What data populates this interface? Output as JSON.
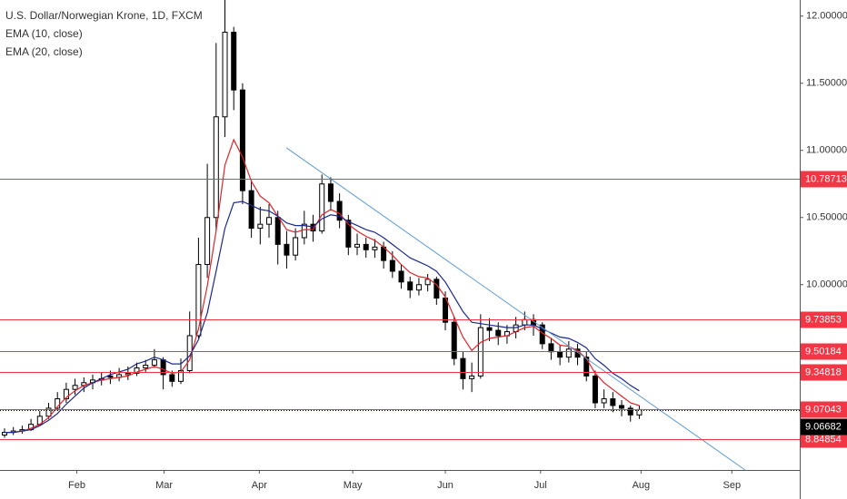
{
  "chart_data": {
    "type": "candlestick",
    "title": "U.S. Dollar/Norwegian Krone, 1D, FXCM",
    "up_color": "#ffffff",
    "down_color": "#000000",
    "candles": {
      "open": [
        8.88,
        8.9,
        8.91,
        8.92,
        8.96,
        9.02,
        9.08,
        9.15,
        9.22,
        9.25,
        9.27,
        9.29,
        9.32,
        9.31,
        9.33,
        9.34,
        9.38,
        9.4,
        9.44,
        9.33,
        9.28,
        9.36,
        9.62,
        10.15,
        10.5,
        11.25,
        11.88,
        11.45,
        10.7,
        10.42,
        10.45,
        10.5,
        10.3,
        10.22,
        10.35,
        10.45,
        10.4,
        10.75,
        10.62,
        10.48,
        10.28,
        10.3,
        10.26,
        10.28,
        10.18,
        10.1,
        10.02,
        9.96,
        10.0,
        10.04,
        9.9,
        9.72,
        9.45,
        9.3,
        9.32,
        9.68,
        9.66,
        9.62,
        9.65,
        9.7,
        9.74,
        9.7,
        9.56,
        9.5,
        9.46,
        9.52,
        9.46,
        9.32,
        9.12,
        9.15,
        9.1,
        9.08,
        9.03
      ],
      "high": [
        8.93,
        8.94,
        8.95,
        9.0,
        9.06,
        9.12,
        9.2,
        9.27,
        9.3,
        9.31,
        9.33,
        9.35,
        9.36,
        9.38,
        9.39,
        9.42,
        9.44,
        9.52,
        9.46,
        9.36,
        9.45,
        9.8,
        10.35,
        10.9,
        11.8,
        12.12,
        11.92,
        11.5,
        10.78,
        10.58,
        10.6,
        10.55,
        10.4,
        10.42,
        10.55,
        10.52,
        10.82,
        10.8,
        10.68,
        10.52,
        10.38,
        10.35,
        10.34,
        10.32,
        10.25,
        10.15,
        10.06,
        10.05,
        10.08,
        10.06,
        9.95,
        9.76,
        9.5,
        9.42,
        9.78,
        9.75,
        9.72,
        9.7,
        9.76,
        9.8,
        9.78,
        9.72,
        9.6,
        9.55,
        9.58,
        9.56,
        9.5,
        9.36,
        9.22,
        9.2,
        9.14,
        9.1,
        9.1
      ],
      "low": [
        8.86,
        8.88,
        8.89,
        8.91,
        8.95,
        9.0,
        9.06,
        9.12,
        9.18,
        9.2,
        9.22,
        9.25,
        9.26,
        9.28,
        9.29,
        9.32,
        9.35,
        9.38,
        9.22,
        9.24,
        9.26,
        9.34,
        9.6,
        10.05,
        10.4,
        11.1,
        11.3,
        10.6,
        10.35,
        10.3,
        10.35,
        10.15,
        10.12,
        10.18,
        10.3,
        10.32,
        10.38,
        10.55,
        10.42,
        10.22,
        10.22,
        10.2,
        10.2,
        10.12,
        10.05,
        9.97,
        9.9,
        9.92,
        9.95,
        9.85,
        9.66,
        9.4,
        9.22,
        9.2,
        9.3,
        9.58,
        9.55,
        9.56,
        9.6,
        9.66,
        9.62,
        9.52,
        9.44,
        9.4,
        9.42,
        9.4,
        9.28,
        9.08,
        9.08,
        9.05,
        9.02,
        8.98,
        9.0
      ],
      "close": [
        8.9,
        8.91,
        8.92,
        8.96,
        9.02,
        9.08,
        9.15,
        9.22,
        9.25,
        9.27,
        9.29,
        9.3,
        9.31,
        9.33,
        9.34,
        9.38,
        9.4,
        9.44,
        9.33,
        9.28,
        9.36,
        9.62,
        10.15,
        10.5,
        11.25,
        11.88,
        11.45,
        10.7,
        10.42,
        10.45,
        10.5,
        10.3,
        10.22,
        10.35,
        10.45,
        10.4,
        10.75,
        10.62,
        10.48,
        10.28,
        10.3,
        10.26,
        10.28,
        10.18,
        10.1,
        10.02,
        9.96,
        10.0,
        10.04,
        9.9,
        9.72,
        9.45,
        9.3,
        9.32,
        9.68,
        9.66,
        9.62,
        9.65,
        9.7,
        9.74,
        9.7,
        9.56,
        9.5,
        9.46,
        9.52,
        9.46,
        9.32,
        9.12,
        9.15,
        9.1,
        9.08,
        9.03,
        9.07
      ]
    },
    "series": [
      {
        "name": "EMA (10, close)",
        "color": "#e0242a",
        "values": [
          8.9,
          8.9,
          8.91,
          8.93,
          8.96,
          9.01,
          9.09,
          9.16,
          9.21,
          9.25,
          9.27,
          9.29,
          9.3,
          9.31,
          9.32,
          9.35,
          9.37,
          9.39,
          9.37,
          9.34,
          9.35,
          9.44,
          9.67,
          9.99,
          10.4,
          10.89,
          11.08,
          10.95,
          10.77,
          10.66,
          10.61,
          10.51,
          10.41,
          10.39,
          10.41,
          10.41,
          10.52,
          10.56,
          10.53,
          10.45,
          10.4,
          10.36,
          10.33,
          10.28,
          10.22,
          10.15,
          10.09,
          10.06,
          10.05,
          10.0,
          9.91,
          9.76,
          9.61,
          9.51,
          9.57,
          9.6,
          9.61,
          9.62,
          9.65,
          9.68,
          9.69,
          9.64,
          9.6,
          9.55,
          9.54,
          9.51,
          9.45,
          9.34,
          9.27,
          9.22,
          9.17,
          9.12,
          9.1
        ]
      },
      {
        "name": "EMA (20, close)",
        "color": "#1c2a8c",
        "values": [
          8.9,
          8.9,
          8.91,
          8.92,
          8.95,
          8.99,
          9.04,
          9.11,
          9.17,
          9.23,
          9.27,
          9.3,
          9.33,
          9.35,
          9.37,
          9.41,
          9.43,
          9.46,
          9.44,
          9.41,
          9.41,
          9.47,
          9.59,
          9.79,
          10.1,
          10.42,
          10.61,
          10.62,
          10.59,
          10.56,
          10.55,
          10.51,
          10.46,
          10.44,
          10.44,
          10.43,
          10.49,
          10.52,
          10.51,
          10.47,
          10.44,
          10.41,
          10.39,
          10.35,
          10.3,
          10.25,
          10.2,
          10.17,
          10.14,
          10.1,
          10.02,
          9.91,
          9.8,
          9.72,
          9.71,
          9.7,
          9.69,
          9.68,
          9.68,
          9.7,
          9.7,
          9.67,
          9.64,
          9.61,
          9.6,
          9.57,
          9.53,
          9.45,
          9.4,
          9.34,
          9.3,
          9.25,
          9.21
        ]
      }
    ],
    "xlim": [
      -0.515,
      90.2
    ],
    "xticks": [
      {
        "value": 8.2,
        "label": "Feb"
      },
      {
        "value": 18.1,
        "label": "Mar"
      },
      {
        "value": 28.9,
        "label": "Apr"
      },
      {
        "value": 39.5,
        "label": "May"
      },
      {
        "value": 50.0,
        "label": "Jun"
      },
      {
        "value": 60.8,
        "label": "Jul"
      },
      {
        "value": 72.2,
        "label": "Aug"
      },
      {
        "value": 82.5,
        "label": "Sep"
      }
    ],
    "ylim": [
      8.62,
      12.12
    ],
    "yticks": [
      {
        "value": 12,
        "label": "12.00000"
      },
      {
        "value": 11.5,
        "label": "11.50000"
      },
      {
        "value": 11,
        "label": "11.00000"
      },
      {
        "value": 10.5,
        "label": "10.50000"
      },
      {
        "value": 10,
        "label": "10.00000"
      }
    ],
    "levels": [
      10.78713,
      9.73853,
      9.50184,
      9.34818,
      9.07043,
      8.84854
    ],
    "level_color": "#f23645",
    "last_price": 9.06682,
    "trendline": {
      "x": [
        31.96,
        84.0
      ],
      "y": [
        11.02,
        8.62
      ],
      "color": "#5b9bd5"
    }
  }
}
